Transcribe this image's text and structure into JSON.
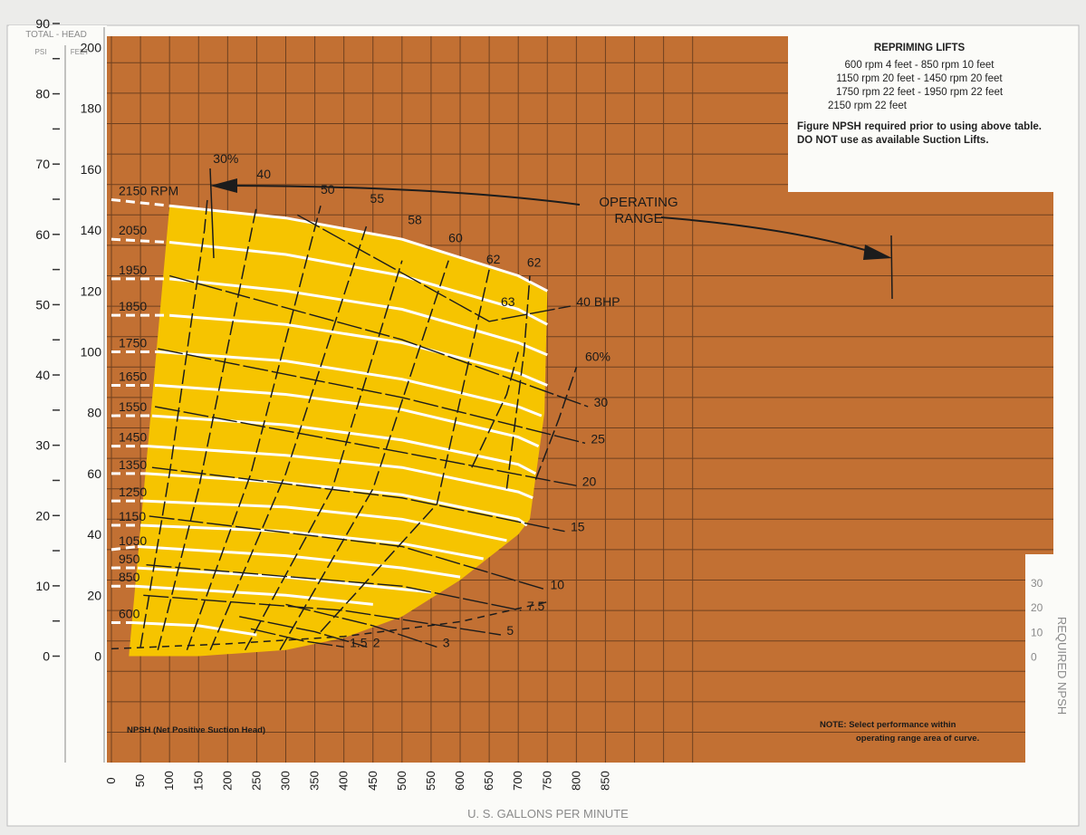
{
  "repriming": {
    "title": "REPRIMING LIFTS",
    "lines": [
      "600 rpm  4 feet -  850 rpm 10 feet",
      "1150 rpm 20 feet - 1450 rpm 20 feet",
      "1750 rpm 22 feet - 1950 rpm 22 feet",
      "2150 rpm 22 feet"
    ],
    "figure_note": "Figure NPSH required prior to using above table. DO NOT use as available Suction Lifts."
  },
  "bottom_notes": {
    "npsh": "NPSH (Net Positive Suction Head)",
    "note_line1": "NOTE: Select performance within",
    "note_line2": "operating range area of curve."
  },
  "operating_range": [
    "OPERATING",
    "RANGE"
  ],
  "colors": {
    "background_frame": "#ececea",
    "plot_brown": "#c27033",
    "grid": "#2b1a10",
    "operating_area": "#f6c400",
    "rpm_curves": "#ffffff",
    "lines": "#1c1c1c",
    "axis_text": "#8a8a8a"
  },
  "chart_data": {
    "type": "line",
    "title": "",
    "xlabel": "U. S. GALLONS PER MINUTE",
    "x_ticks": [
      "0",
      "50",
      "100",
      "150",
      "200",
      "250",
      "300",
      "350",
      "400",
      "450",
      "500",
      "550",
      "600",
      "650",
      "700",
      "750",
      "800",
      "850"
    ],
    "xlim": [
      0,
      900
    ],
    "left_axis": {
      "header": "TOTAL - HEAD",
      "psi_label": "PSI",
      "feet_label": "FEET",
      "psi_ticks": [
        "0",
        "10",
        "20",
        "30",
        "40",
        "50",
        "60",
        "70",
        "80",
        "90"
      ],
      "feet_ticks": [
        "0",
        "20",
        "40",
        "60",
        "80",
        "100",
        "120",
        "140",
        "160",
        "180",
        "200"
      ],
      "feet_range": [
        0,
        210
      ]
    },
    "right_axis": {
      "label": "REQUIRED NPSH",
      "ticks": [
        "0",
        "10",
        "20",
        "30"
      ],
      "range": [
        0,
        35
      ]
    },
    "speed_curves": {
      "unit_label": "RPM",
      "series": [
        {
          "name": "2150",
          "shutoff_head": 150,
          "pts": [
            [
              100,
              148
            ],
            [
              300,
              144
            ],
            [
              500,
              137
            ],
            [
              700,
              125
            ],
            [
              750,
              120
            ]
          ]
        },
        {
          "name": "2050",
          "shutoff_head": 137,
          "pts": [
            [
              100,
              136
            ],
            [
              300,
              132
            ],
            [
              500,
              125
            ],
            [
              700,
              114
            ],
            [
              750,
              109
            ]
          ]
        },
        {
          "name": "1950",
          "shutoff_head": 124,
          "pts": [
            [
              100,
              124
            ],
            [
              300,
              120
            ],
            [
              500,
              114
            ],
            [
              700,
              103
            ],
            [
              750,
              99
            ]
          ]
        },
        {
          "name": "1850",
          "shutoff_head": 112,
          "pts": [
            [
              100,
              112
            ],
            [
              300,
              109
            ],
            [
              500,
              103
            ],
            [
              700,
              93
            ],
            [
              750,
              89
            ]
          ]
        },
        {
          "name": "1750",
          "shutoff_head": 100,
          "pts": [
            [
              80,
              100
            ],
            [
              300,
              97
            ],
            [
              500,
              91
            ],
            [
              700,
              82
            ],
            [
              740,
              79
            ]
          ]
        },
        {
          "name": "1650",
          "shutoff_head": 89,
          "pts": [
            [
              80,
              89
            ],
            [
              300,
              86
            ],
            [
              500,
              81
            ],
            [
              700,
              72
            ],
            [
              735,
              69
            ]
          ]
        },
        {
          "name": "1550",
          "shutoff_head": 79,
          "pts": [
            [
              70,
              79
            ],
            [
              300,
              76
            ],
            [
              500,
              71
            ],
            [
              700,
              63
            ],
            [
              730,
              60
            ]
          ]
        },
        {
          "name": "1450",
          "shutoff_head": 69,
          "pts": [
            [
              65,
              69
            ],
            [
              300,
              66
            ],
            [
              500,
              62
            ],
            [
              700,
              54
            ],
            [
              725,
              52
            ]
          ]
        },
        {
          "name": "1350",
          "shutoff_head": 60,
          "pts": [
            [
              60,
              60
            ],
            [
              300,
              57
            ],
            [
              500,
              53
            ],
            [
              700,
              45
            ],
            [
              715,
              43
            ]
          ]
        },
        {
          "name": "1250",
          "shutoff_head": 51,
          "pts": [
            [
              55,
              51
            ],
            [
              300,
              49
            ],
            [
              500,
              45
            ],
            [
              680,
              38
            ]
          ]
        },
        {
          "name": "1150",
          "shutoff_head": 43,
          "pts": [
            [
              50,
              43
            ],
            [
              300,
              41
            ],
            [
              500,
              37
            ],
            [
              640,
              32
            ]
          ]
        },
        {
          "name": "1050",
          "shutoff_head": 35,
          "pts": [
            [
              45,
              36
            ],
            [
              300,
              33
            ],
            [
              500,
              29
            ],
            [
              600,
              26
            ]
          ]
        },
        {
          "name": "950",
          "shutoff_head": 29,
          "pts": [
            [
              45,
              29
            ],
            [
              300,
              26
            ],
            [
              500,
              22
            ],
            [
              550,
              21
            ]
          ]
        },
        {
          "name": "850",
          "shutoff_head": 23,
          "pts": [
            [
              40,
              23
            ],
            [
              300,
              20
            ],
            [
              450,
              17
            ]
          ]
        },
        {
          "name": "600",
          "shutoff_head": 11,
          "pts": [
            [
              35,
              11
            ],
            [
              150,
              10
            ],
            [
              250,
              7
            ]
          ]
        }
      ]
    },
    "efficiency_curves": [
      {
        "name": "30%",
        "label_at": [
          175,
          162
        ],
        "pts": [
          [
            50,
            3
          ],
          [
            100,
            60
          ],
          [
            160,
            140
          ],
          [
            165,
            150
          ]
        ]
      },
      {
        "name": "40",
        "label_at": [
          250,
          157
        ],
        "pts": [
          [
            80,
            2
          ],
          [
            150,
            55
          ],
          [
            250,
            148
          ]
        ]
      },
      {
        "name": "50",
        "label_at": [
          360,
          152
        ],
        "pts": [
          [
            130,
            2
          ],
          [
            240,
            60
          ],
          [
            360,
            148
          ]
        ]
      },
      {
        "name": "55",
        "label_at": [
          445,
          149
        ],
        "pts": [
          [
            170,
            2
          ],
          [
            300,
            60
          ],
          [
            440,
            142
          ]
        ]
      },
      {
        "name": "58",
        "label_at": [
          510,
          142
        ],
        "pts": [
          [
            230,
            2
          ],
          [
            380,
            55
          ],
          [
            500,
            130
          ]
        ]
      },
      {
        "name": "60",
        "label_at": [
          580,
          136
        ],
        "pts": [
          [
            290,
            2
          ],
          [
            450,
            55
          ],
          [
            580,
            130
          ]
        ]
      },
      {
        "name": "62",
        "label_at": [
          645,
          129
        ],
        "pts": [
          [
            360,
            8
          ],
          [
            560,
            50
          ],
          [
            650,
            127
          ]
        ]
      },
      {
        "name": "63",
        "label_at": [
          670,
          115
        ],
        "pts": [
          [
            620,
            62
          ],
          [
            680,
            86
          ],
          [
            700,
            100
          ]
        ]
      },
      {
        "name": "62",
        "label_at": [
          715,
          128
        ],
        "pts": [
          [
            680,
            55
          ],
          [
            710,
            100
          ],
          [
            720,
            125
          ]
        ]
      },
      {
        "name": "60%",
        "label_at": [
          815,
          97
        ],
        "pts": [
          [
            730,
            58
          ],
          [
            770,
            78
          ],
          [
            800,
            95
          ]
        ]
      }
    ],
    "bhp_lines": [
      {
        "name": "40 BHP",
        "label_at": [
          800,
          115
        ],
        "pts": [
          [
            320,
            145
          ],
          [
            650,
            110
          ],
          [
            790,
            115
          ]
        ]
      },
      {
        "name": "30",
        "label_at": [
          830,
          82
        ],
        "pts": [
          [
            100,
            125
          ],
          [
            500,
            104
          ],
          [
            820,
            82
          ]
        ]
      },
      {
        "name": "25",
        "label_at": [
          825,
          70
        ],
        "pts": [
          [
            80,
            101
          ],
          [
            500,
            85
          ],
          [
            815,
            70
          ]
        ]
      },
      {
        "name": "20",
        "label_at": [
          810,
          56
        ],
        "pts": [
          [
            75,
            82
          ],
          [
            500,
            67
          ],
          [
            800,
            56
          ]
        ]
      },
      {
        "name": "15",
        "label_at": [
          790,
          41
        ],
        "pts": [
          [
            70,
            62
          ],
          [
            500,
            52
          ],
          [
            780,
            41
          ]
        ]
      },
      {
        "name": "10",
        "label_at": [
          755,
          22
        ],
        "pts": [
          [
            65,
            46
          ],
          [
            500,
            36
          ],
          [
            745,
            22
          ]
        ]
      },
      {
        "name": "7.5",
        "label_at": [
          715,
          15
        ],
        "pts": [
          [
            60,
            30
          ],
          [
            500,
            23
          ],
          [
            705,
            15
          ]
        ]
      },
      {
        "name": "5",
        "label_at": [
          680,
          7
        ],
        "pts": [
          [
            55,
            20
          ],
          [
            400,
            15
          ],
          [
            670,
            7
          ]
        ]
      },
      {
        "name": "3",
        "label_at": [
          570,
          3
        ],
        "pts": [
          [
            300,
            17
          ],
          [
            450,
            10
          ],
          [
            560,
            3
          ]
        ]
      },
      {
        "name": "2",
        "label_at": [
          450,
          3
        ],
        "pts": [
          [
            220,
            13
          ],
          [
            350,
            8
          ],
          [
            440,
            3
          ]
        ]
      },
      {
        "name": "1.5",
        "label_at": [
          410,
          3
        ],
        "pts": [
          [
            240,
            9
          ],
          [
            330,
            5
          ],
          [
            400,
            3
          ]
        ]
      }
    ],
    "npsh_required": {
      "pts": [
        [
          0,
          3
        ],
        [
          200,
          5
        ],
        [
          400,
          8
        ],
        [
          600,
          14
        ],
        [
          750,
          22
        ]
      ]
    }
  }
}
